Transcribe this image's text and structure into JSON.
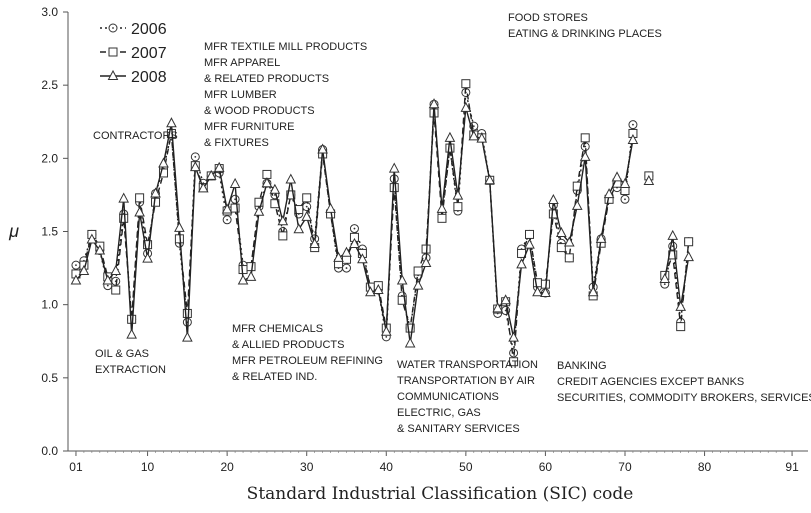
{
  "chart_data": {
    "type": "line",
    "xlabel": "Standard Industrial Classification (SIC) code",
    "ylabel": "μ",
    "xlim": [
      0,
      93
    ],
    "ylim": [
      0,
      3
    ],
    "x_tick_labels": [
      "01",
      "10",
      "20",
      "30",
      "40",
      "50",
      "60",
      "70",
      "80",
      "91"
    ],
    "x_tick_values": [
      1,
      10,
      20,
      30,
      40,
      50,
      60,
      70,
      80,
      91
    ],
    "y_tick_labels": [
      "0.0",
      "0.5",
      "1.0",
      "1.5",
      "2.0",
      "2.5",
      "3.0"
    ],
    "y_tick_values": [
      0,
      0.5,
      1,
      1.5,
      2,
      2.5,
      3
    ],
    "grid": false,
    "legend_position": "top-left",
    "x": [
      1,
      2,
      3,
      4,
      5,
      6,
      7,
      8,
      9,
      10,
      11,
      12,
      13,
      14,
      15,
      16,
      17,
      18,
      19,
      20,
      21,
      22,
      23,
      24,
      25,
      26,
      27,
      28,
      29,
      30,
      31,
      32,
      33,
      34,
      35,
      36,
      37,
      38,
      39,
      40,
      41,
      42,
      43,
      44,
      45,
      46,
      47,
      48,
      49,
      50,
      51,
      52,
      53,
      54,
      55,
      56,
      57,
      58,
      59,
      60,
      61,
      62,
      63,
      64,
      65,
      66,
      67,
      68,
      69,
      70,
      71,
      72,
      73,
      74,
      75,
      76,
      77,
      78,
      79,
      80,
      81,
      82,
      83,
      84,
      85,
      86,
      87,
      88,
      89,
      90,
      91
    ],
    "series": [
      {
        "name": "2006",
        "marker": "circle-dot",
        "dash": "dotted",
        "values": [
          1.27,
          1.3,
          1.48,
          1.37,
          1.13,
          1.16,
          1.62,
          0.9,
          1.7,
          1.35,
          1.76,
          1.93,
          2.17,
          1.42,
          0.88,
          2.01,
          1.83,
          1.88,
          1.9,
          1.58,
          1.72,
          1.27,
          1.26,
          1.67,
          1.83,
          1.75,
          1.5,
          1.75,
          1.62,
          1.67,
          1.45,
          2.06,
          1.62,
          1.25,
          1.25,
          1.52,
          1.38,
          1.12,
          1.1,
          0.78,
          1.86,
          1.06,
          0.84,
          1.2,
          1.32,
          2.37,
          1.62,
          2.07,
          1.64,
          2.45,
          2.22,
          2.17,
          1.85,
          0.94,
          0.96,
          0.67,
          1.38,
          1.48,
          1.12,
          1.08,
          1.68,
          1.42,
          1.32,
          1.78,
          2.08,
          1.12,
          1.45,
          1.72,
          1.8,
          1.72,
          2.23,
          null,
          1.88,
          null,
          1.14,
          1.4,
          0.88,
          1.43,
          null
        ],
        "x": [
          1,
          2,
          3,
          4,
          5,
          6,
          7,
          8,
          9,
          10,
          11,
          12,
          13,
          14,
          15,
          16,
          17,
          18,
          19,
          20,
          21,
          22,
          23,
          24,
          25,
          26,
          27,
          28,
          29,
          30,
          31,
          32,
          33,
          34,
          35,
          36,
          37,
          38,
          39,
          40,
          41,
          42,
          43,
          44,
          45,
          46,
          47,
          48,
          49,
          50,
          51,
          52,
          53,
          54,
          55,
          56,
          57,
          58,
          59,
          60,
          61,
          62,
          63,
          64,
          65,
          66,
          67,
          68,
          69,
          70,
          71,
          72,
          73,
          74,
          75,
          76,
          77,
          78,
          79
        ]
      }
    ]
  },
  "legend": {
    "items": [
      {
        "label": "2006"
      },
      {
        "label": "2007"
      },
      {
        "label": "2008"
      }
    ]
  },
  "annotations": [
    {
      "lines": [
        "FOOD STORES",
        "EATING & DRINKING PLACES"
      ]
    },
    {
      "lines": [
        "MFR TEXTILE MILL PRODUCTS",
        "MFR APPAREL",
        " & RELATED PRODUCTS",
        "MFR LUMBER",
        " & WOOD PRODUCTS",
        "MFR FURNITURE",
        " & FIXTURES"
      ]
    },
    {
      "lines": [
        "CONTRACTORS"
      ]
    },
    {
      "lines": [
        "OIL & GAS",
        "EXTRACTION"
      ]
    },
    {
      "lines": [
        "MFR CHEMICALS",
        " & ALLIED PRODUCTS",
        "MFR PETROLEUM REFINING",
        " & RELATED IND."
      ]
    },
    {
      "lines": [
        "WATER TRANSPORTATION",
        "TRANSPORTATION BY AIR",
        "COMMUNICATIONS",
        "ELECTRIC, GAS",
        " & SANITARY SERVICES"
      ]
    },
    {
      "lines": [
        "BANKING",
        "CREDIT AGENCIES EXCEPT BANKS",
        "SECURITIES, COMMODITY BROKERS, SERVICES"
      ]
    }
  ]
}
